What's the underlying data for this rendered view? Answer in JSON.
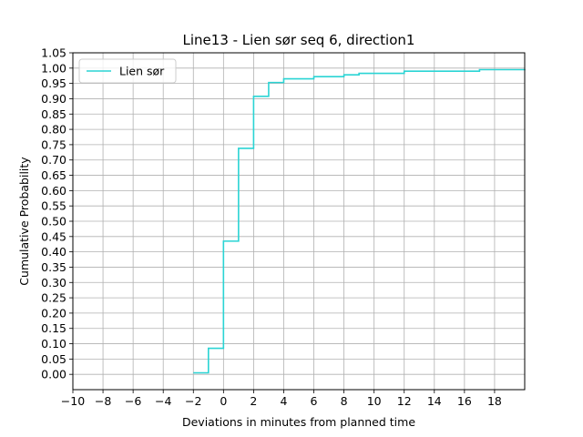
{
  "chart_data": {
    "type": "line",
    "step": "post",
    "title": "Line13 - Lien sør seq 6, direction1",
    "xlabel": "Deviations in minutes from planned time",
    "ylabel": "Cumulative Probability",
    "xlim": [
      -10,
      20
    ],
    "ylim": [
      -0.05,
      1.05
    ],
    "xticks": [
      -10,
      -8,
      -6,
      -4,
      -2,
      0,
      2,
      4,
      6,
      8,
      10,
      12,
      14,
      16,
      18
    ],
    "xtick_labels": [
      "−10",
      "−8",
      "−6",
      "−4",
      "−2",
      "0",
      "2",
      "4",
      "6",
      "8",
      "10",
      "12",
      "14",
      "16",
      "18"
    ],
    "yticks": [
      0.0,
      0.05,
      0.1,
      0.15,
      0.2,
      0.25,
      0.3,
      0.35,
      0.4,
      0.45,
      0.5,
      0.55,
      0.6,
      0.65,
      0.7,
      0.75,
      0.8,
      0.85,
      0.9,
      0.95,
      1.0,
      1.05
    ],
    "ytick_labels": [
      "0.00",
      "0.05",
      "0.10",
      "0.15",
      "0.20",
      "0.25",
      "0.30",
      "0.35",
      "0.40",
      "0.45",
      "0.50",
      "0.55",
      "0.60",
      "0.65",
      "0.70",
      "0.75",
      "0.80",
      "0.85",
      "0.90",
      "0.95",
      "1.00",
      "1.05"
    ],
    "grid": true,
    "legend": "upper-left",
    "series": [
      {
        "name": "Lien sør",
        "color": "#2ad4d4",
        "x": [
          -2,
          -1,
          0,
          1,
          2,
          3,
          4,
          6,
          8,
          9,
          12,
          17,
          20
        ],
        "y": [
          0.005,
          0.085,
          0.435,
          0.738,
          0.908,
          0.953,
          0.965,
          0.972,
          0.978,
          0.983,
          0.99,
          0.995,
          0.997
        ]
      }
    ]
  }
}
